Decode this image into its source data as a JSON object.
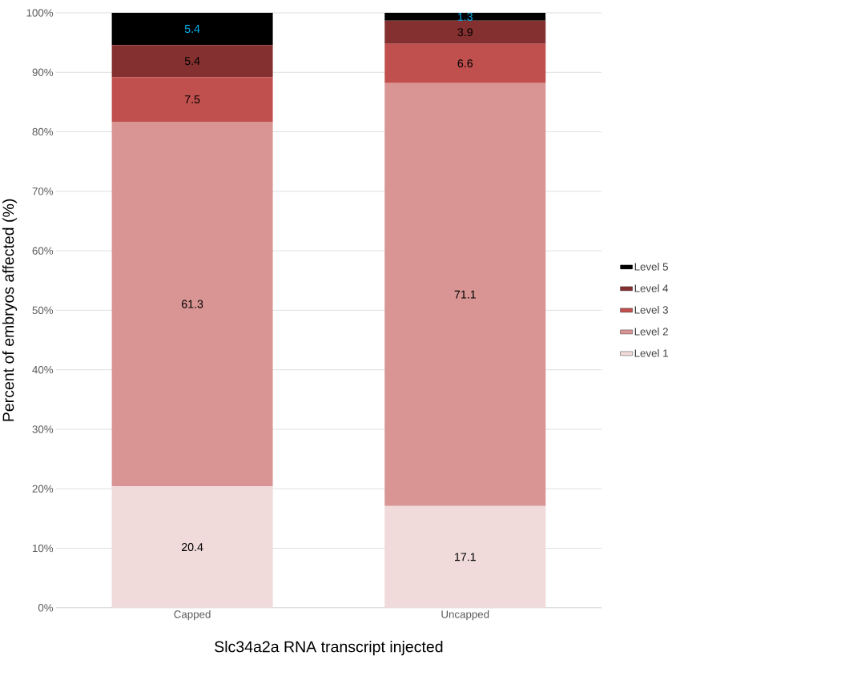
{
  "chart_data": {
    "type": "bar",
    "stacked": true,
    "xlabel": "Slc34a2a RNA transcript injected",
    "ylabel": "Percent of embryos affected (%)",
    "categories": [
      "Capped",
      "Uncapped"
    ],
    "series": [
      {
        "name": "Level 1",
        "color": "#f0dada",
        "values": [
          20.4,
          17.1
        ]
      },
      {
        "name": "Level 2",
        "color": "#d99594",
        "values": [
          61.3,
          71.1
        ]
      },
      {
        "name": "Level 3",
        "color": "#c0504d",
        "values": [
          7.5,
          6.6
        ]
      },
      {
        "name": "Level 4",
        "color": "#853030",
        "values": [
          5.4,
          3.9
        ]
      },
      {
        "name": "Level 5",
        "color": "#000000",
        "values": [
          5.4,
          1.3
        ]
      }
    ],
    "ylim": [
      0,
      100
    ],
    "yticks": [
      {
        "value": 0,
        "label": "0%"
      },
      {
        "value": 10,
        "label": "10%"
      },
      {
        "value": 20,
        "label": "20%"
      },
      {
        "value": 30,
        "label": "30%"
      },
      {
        "value": 40,
        "label": "40%"
      },
      {
        "value": 50,
        "label": "50%"
      },
      {
        "value": 60,
        "label": "60%"
      },
      {
        "value": 70,
        "label": "70%"
      },
      {
        "value": 80,
        "label": "80%"
      },
      {
        "value": 90,
        "label": "90%"
      },
      {
        "value": 100,
        "label": "100%"
      }
    ],
    "grid": "y",
    "legend": "right",
    "data_labels": true
  }
}
